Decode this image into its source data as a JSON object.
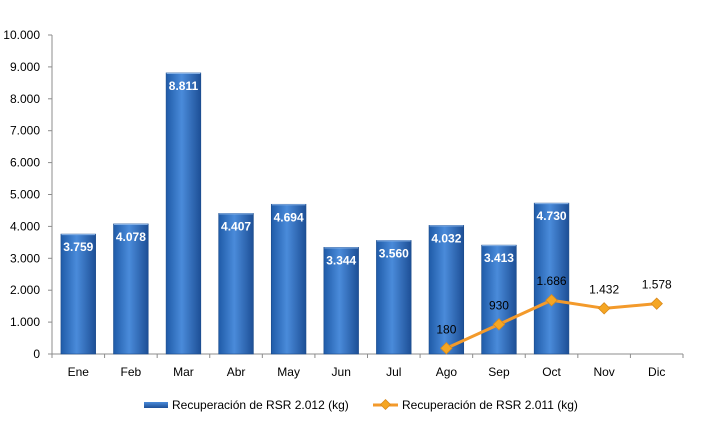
{
  "chart_data": {
    "type": "bar",
    "categories": [
      "Ene",
      "Feb",
      "Mar",
      "Abr",
      "May",
      "Jun",
      "Jul",
      "Ago",
      "Sep",
      "Oct",
      "Nov",
      "Dic"
    ],
    "series": [
      {
        "name": "Recuperación de RSR 2.012 (kg)",
        "type": "bar",
        "values": [
          3759,
          4078,
          8811,
          4407,
          4694,
          3344,
          3560,
          4032,
          3413,
          4730,
          null,
          null
        ],
        "labels": [
          "3.759",
          "4.078",
          "8.811",
          "4.407",
          "4.694",
          "3.344",
          "3.560",
          "4.032",
          "3.413",
          "4.730",
          "",
          ""
        ],
        "color": "#2E6FC0"
      },
      {
        "name": "Recuperación de RSR 2.011 (kg)",
        "type": "line",
        "values": [
          null,
          null,
          null,
          null,
          null,
          null,
          null,
          180,
          930,
          1686,
          1432,
          1578
        ],
        "labels": [
          "",
          "",
          "",
          "",
          "",
          "",
          "",
          "180",
          "930",
          "1.686",
          "1.432",
          "1.578"
        ],
        "color": "#F39A2B"
      }
    ],
    "yticks": [
      0,
      1000,
      2000,
      3000,
      4000,
      5000,
      6000,
      7000,
      8000,
      9000,
      10000
    ],
    "ytick_labels": [
      "0",
      "1.000",
      "2.000",
      "3.000",
      "4.000",
      "5.000",
      "6.000",
      "7.000",
      "8.000",
      "9.000",
      "10.000"
    ],
    "ylim": [
      0,
      10000
    ],
    "title": "",
    "xlabel": "",
    "ylabel": "",
    "grid": false,
    "legend": "bottom"
  }
}
